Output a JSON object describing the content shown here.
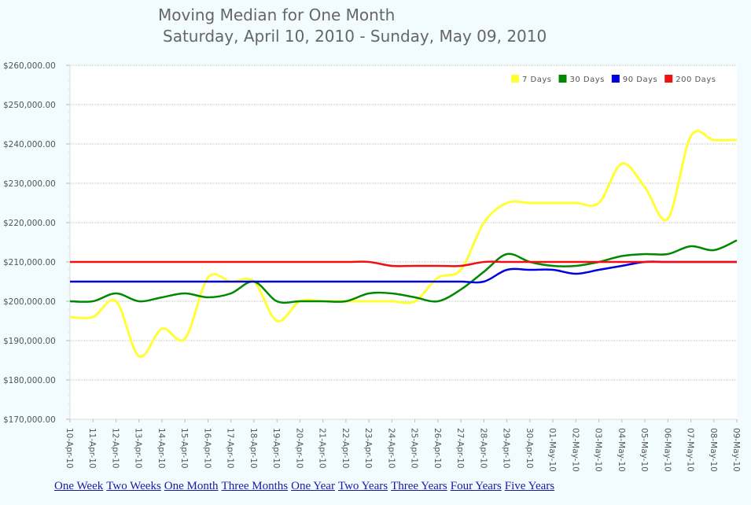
{
  "page": {
    "title": "Moving Median for One Month",
    "subtitle": "Saturday, April 10, 2010 - Sunday, May 09, 2010"
  },
  "chart_data": {
    "type": "line",
    "title": "Moving Median for One Month",
    "subtitle": "Saturday, April 10, 2010 - Sunday, May 09, 2010",
    "xlabel": "",
    "ylabel": "",
    "ylim": [
      170000,
      260000
    ],
    "y_tick_step": 10000,
    "y_ticks": [
      "$170,000.00",
      "$180,000.00",
      "$190,000.00",
      "$200,000.00",
      "$210,000.00",
      "$220,000.00",
      "$230,000.00",
      "$240,000.00",
      "$250,000.00",
      "$260,000.00"
    ],
    "grid": true,
    "legend_position": "top-right",
    "categories": [
      "10-Apr-10",
      "11-Apr-10",
      "12-Apr-10",
      "13-Apr-10",
      "14-Apr-10",
      "15-Apr-10",
      "16-Apr-10",
      "17-Apr-10",
      "18-Apr-10",
      "19-Apr-10",
      "20-Apr-10",
      "21-Apr-10",
      "22-Apr-10",
      "23-Apr-10",
      "24-Apr-10",
      "25-Apr-10",
      "26-Apr-10",
      "27-Apr-10",
      "28-Apr-10",
      "29-Apr-10",
      "30-Apr-10",
      "01-May-10",
      "02-May-10",
      "03-May-10",
      "04-May-10",
      "05-May-10",
      "06-May-10",
      "07-May-10",
      "08-May-10",
      "09-May-10"
    ],
    "series": [
      {
        "name": "7 Days",
        "color": "#ffff33",
        "values": [
          196000,
          196000,
          200000,
          186000,
          193000,
          190500,
          206000,
          205000,
          205000,
          195000,
          200000,
          200000,
          200000,
          200000,
          200000,
          200000,
          206000,
          208000,
          220000,
          225000,
          225000,
          225000,
          225000,
          225000,
          235000,
          229000,
          221000,
          242000,
          241000,
          241000
        ]
      },
      {
        "name": "30 Days",
        "color": "#008800",
        "values": [
          200000,
          200000,
          202000,
          200000,
          201000,
          202000,
          201000,
          202000,
          205000,
          200000,
          200000,
          200000,
          200000,
          202000,
          202000,
          201000,
          200000,
          203000,
          207500,
          212000,
          210000,
          209000,
          209000,
          210000,
          211500,
          212000,
          212000,
          214000,
          213000,
          215500
        ]
      },
      {
        "name": "90 Days",
        "color": "#0000dd",
        "values": [
          205000,
          205000,
          205000,
          205000,
          205000,
          205000,
          205000,
          205000,
          205000,
          205000,
          205000,
          205000,
          205000,
          205000,
          205000,
          205000,
          205000,
          205000,
          205000,
          208000,
          208000,
          208000,
          207000,
          208000,
          209000,
          210000,
          210000,
          210000,
          210000,
          210000
        ]
      },
      {
        "name": "200 Days",
        "color": "#ee1111",
        "values": [
          210000,
          210000,
          210000,
          210000,
          210000,
          210000,
          210000,
          210000,
          210000,
          210000,
          210000,
          210000,
          210000,
          210000,
          209000,
          209000,
          209000,
          209000,
          210000,
          210000,
          210000,
          210000,
          210000,
          210000,
          210000,
          210000,
          210000,
          210000,
          210000,
          210000
        ]
      }
    ]
  },
  "links": [
    {
      "label": "One Week"
    },
    {
      "label": "Two Weeks"
    },
    {
      "label": "One Month"
    },
    {
      "label": "Three Months"
    },
    {
      "label": "One Year"
    },
    {
      "label": "Two Years"
    },
    {
      "label": "Three Years"
    },
    {
      "label": "Four Years"
    },
    {
      "label": "Five Years"
    }
  ]
}
